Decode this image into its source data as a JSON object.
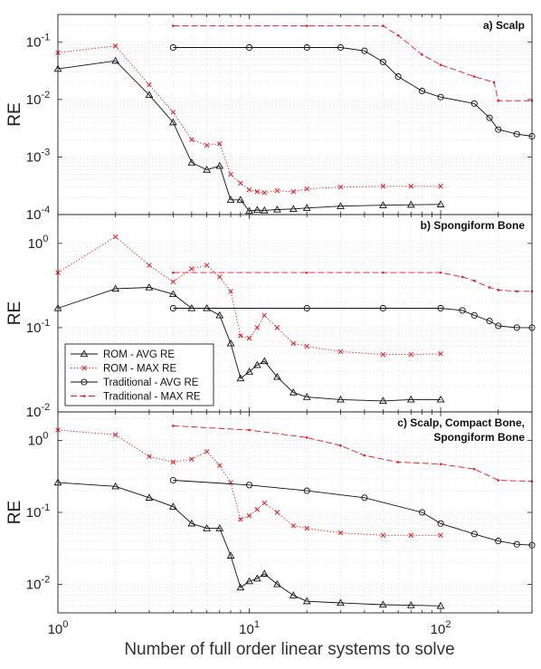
{
  "figure": {
    "xlabel": "Number of full order linear systems to solve",
    "ylabel": "RE",
    "xscale": "log",
    "xlim": [
      1,
      300
    ],
    "x_tick_labels": [
      {
        "base": "10",
        "exp": "0"
      },
      {
        "base": "10",
        "exp": "1"
      },
      {
        "base": "10",
        "exp": "2"
      }
    ]
  },
  "legend": {
    "placement": "left, inside panel b",
    "entries": [
      {
        "label": "ROM - AVG RE",
        "series": "rom_avg"
      },
      {
        "label": "ROM - MAX RE",
        "series": "rom_max"
      },
      {
        "label": "Traditional - AVG RE",
        "series": "trad_avg"
      },
      {
        "label": "Traditional - MAX RE",
        "series": "trad_max"
      }
    ]
  },
  "series_styles": {
    "rom_avg": {
      "color": "#111111",
      "marker": "triangle",
      "line": "solid"
    },
    "rom_max": {
      "color": "#e8191c",
      "marker": "x",
      "line": "dotted"
    },
    "trad_avg": {
      "color": "#111111",
      "marker": "circle",
      "line": "solid"
    },
    "trad_max": {
      "color": "#e8191c",
      "marker": "dot",
      "line": "dashed"
    }
  },
  "chart_data": [
    {
      "type": "line",
      "title": "a) Scalp",
      "xscale": "log",
      "yscale": "log",
      "xlim": [
        1,
        300
      ],
      "ylim": [
        0.0001,
        0.3
      ],
      "ylabel": "RE",
      "y_tick_labels": [
        {
          "value": 0.0001,
          "base": "10",
          "exp": "-4"
        },
        {
          "value": 0.001,
          "base": "10",
          "exp": "-3"
        },
        {
          "value": 0.01,
          "base": "10",
          "exp": "-2"
        },
        {
          "value": 0.1,
          "base": "10",
          "exp": "-1"
        }
      ],
      "series": [
        {
          "name": "ROM - AVG RE",
          "key": "rom_avg",
          "x": [
            1,
            2,
            3,
            4,
            5,
            6,
            7,
            8,
            9,
            10,
            11,
            12,
            14,
            17,
            20,
            30,
            50,
            70,
            100
          ],
          "y": [
            0.034,
            0.047,
            0.012,
            0.004,
            0.0008,
            0.0006,
            0.0007,
            0.00018,
            0.00018,
            0.000115,
            0.00012,
            0.000118,
            0.000122,
            0.000125,
            0.00013,
            0.00014,
            0.000145,
            0.000148,
            0.00015
          ]
        },
        {
          "name": "ROM - MAX RE",
          "key": "rom_max",
          "x": [
            1,
            2,
            3,
            4,
            5,
            6,
            7,
            8,
            9,
            10,
            11,
            12,
            14,
            17,
            20,
            30,
            50,
            70,
            100
          ],
          "y": [
            0.065,
            0.085,
            0.018,
            0.006,
            0.002,
            0.0016,
            0.0017,
            0.0005,
            0.00035,
            0.00027,
            0.00025,
            0.00024,
            0.00026,
            0.00025,
            0.00028,
            0.0003,
            0.00031,
            0.00031,
            0.00031
          ]
        },
        {
          "name": "Traditional - AVG RE",
          "key": "trad_avg",
          "x": [
            4,
            10,
            20,
            30,
            40,
            50,
            60,
            80,
            100,
            150,
            180,
            200,
            250,
            300
          ],
          "y": [
            0.08,
            0.08,
            0.08,
            0.08,
            0.07,
            0.045,
            0.025,
            0.014,
            0.011,
            0.0085,
            0.0048,
            0.003,
            0.0025,
            0.0023
          ]
        },
        {
          "name": "Traditional - MAX RE",
          "key": "trad_max",
          "x": [
            4,
            20,
            50,
            60,
            80,
            100,
            150,
            190,
            200,
            300
          ],
          "y": [
            0.19,
            0.19,
            0.19,
            0.13,
            0.06,
            0.04,
            0.025,
            0.02,
            0.0095,
            0.0095
          ]
        }
      ]
    },
    {
      "type": "line",
      "title": "b) Spongiform Bone",
      "xscale": "log",
      "yscale": "log",
      "xlim": [
        1,
        300
      ],
      "ylim": [
        0.01,
        2.2
      ],
      "ylabel": "RE",
      "y_tick_labels": [
        {
          "value": 0.01,
          "base": "10",
          "exp": "-2"
        },
        {
          "value": 0.1,
          "base": "10",
          "exp": "-1"
        },
        {
          "value": 1,
          "base": "10",
          "exp": "0"
        }
      ],
      "series": [
        {
          "name": "ROM - AVG RE",
          "key": "rom_avg",
          "x": [
            1,
            2,
            3,
            4,
            5,
            6,
            7,
            8,
            9,
            10,
            11,
            12,
            14,
            17,
            20,
            30,
            50,
            70,
            100
          ],
          "y": [
            0.17,
            0.29,
            0.3,
            0.25,
            0.17,
            0.17,
            0.14,
            0.065,
            0.025,
            0.03,
            0.036,
            0.04,
            0.026,
            0.017,
            0.015,
            0.014,
            0.0135,
            0.014,
            0.014
          ]
        },
        {
          "name": "ROM - MAX RE",
          "key": "rom_max",
          "x": [
            1,
            2,
            3,
            4,
            5,
            6,
            7,
            8,
            9,
            10,
            11,
            12,
            14,
            17,
            20,
            30,
            50,
            70,
            100
          ],
          "y": [
            0.45,
            1.2,
            0.55,
            0.35,
            0.5,
            0.55,
            0.4,
            0.27,
            0.08,
            0.075,
            0.1,
            0.14,
            0.1,
            0.065,
            0.06,
            0.052,
            0.048,
            0.048,
            0.049
          ]
        },
        {
          "name": "Traditional - AVG RE",
          "key": "trad_avg",
          "x": [
            4,
            20,
            50,
            100,
            130,
            150,
            180,
            200,
            250,
            300
          ],
          "y": [
            0.17,
            0.17,
            0.17,
            0.17,
            0.16,
            0.14,
            0.12,
            0.105,
            0.1,
            0.1
          ]
        },
        {
          "name": "Traditional - MAX RE",
          "key": "trad_max",
          "x": [
            4,
            20,
            50,
            100,
            130,
            150,
            180,
            200,
            250,
            300
          ],
          "y": [
            0.45,
            0.45,
            0.45,
            0.45,
            0.4,
            0.36,
            0.3,
            0.28,
            0.27,
            0.27
          ]
        }
      ]
    },
    {
      "type": "line",
      "title": "c) Scalp, Compact Bone, Spongiform Bone",
      "title_lines": [
        "c) Scalp, Compact Bone,",
        "Spongiform Bone"
      ],
      "xscale": "log",
      "yscale": "log",
      "xlim": [
        1,
        300
      ],
      "ylim": [
        0.004,
        2.5
      ],
      "ylabel": "RE",
      "y_tick_labels": [
        {
          "value": 0.01,
          "base": "10",
          "exp": "-2"
        },
        {
          "value": 0.1,
          "base": "10",
          "exp": "-1"
        },
        {
          "value": 1,
          "base": "10",
          "exp": "0"
        }
      ],
      "series": [
        {
          "name": "ROM - AVG RE",
          "key": "rom_avg",
          "x": [
            1,
            2,
            3,
            4,
            5,
            6,
            7,
            8,
            9,
            10,
            11,
            12,
            14,
            17,
            20,
            30,
            50,
            70,
            100
          ],
          "y": [
            0.26,
            0.23,
            0.16,
            0.12,
            0.07,
            0.06,
            0.06,
            0.025,
            0.009,
            0.011,
            0.012,
            0.014,
            0.01,
            0.007,
            0.0058,
            0.0055,
            0.0052,
            0.0051,
            0.005
          ]
        },
        {
          "name": "ROM - MAX RE",
          "key": "rom_max",
          "x": [
            1,
            2,
            3,
            4,
            5,
            6,
            7,
            8,
            9,
            10,
            11,
            12,
            14,
            17,
            20,
            30,
            50,
            70,
            100
          ],
          "y": [
            1.4,
            1.2,
            0.6,
            0.5,
            0.55,
            0.7,
            0.45,
            0.26,
            0.08,
            0.09,
            0.11,
            0.135,
            0.1,
            0.065,
            0.06,
            0.052,
            0.048,
            0.048,
            0.048
          ]
        },
        {
          "name": "Traditional - AVG RE",
          "key": "trad_avg",
          "x": [
            4,
            10,
            20,
            40,
            80,
            100,
            150,
            200,
            250,
            300
          ],
          "y": [
            0.28,
            0.24,
            0.2,
            0.16,
            0.1,
            0.07,
            0.05,
            0.04,
            0.036,
            0.035
          ]
        },
        {
          "name": "Traditional - MAX RE",
          "key": "trad_max",
          "x": [
            4,
            10,
            20,
            30,
            40,
            60,
            100,
            150,
            200,
            300
          ],
          "y": [
            1.6,
            1.4,
            1.1,
            0.85,
            0.62,
            0.5,
            0.47,
            0.4,
            0.28,
            0.27
          ]
        }
      ]
    }
  ]
}
